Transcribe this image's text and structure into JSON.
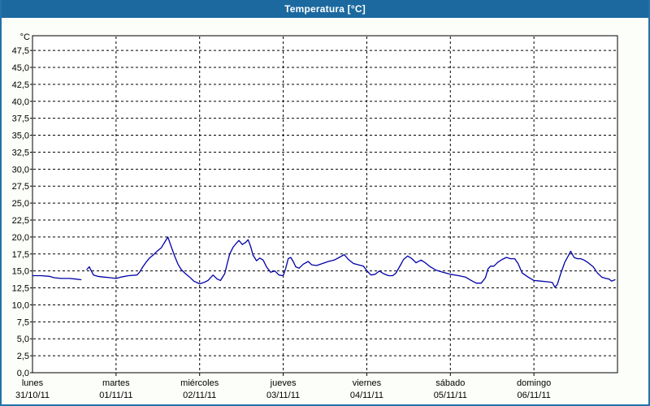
{
  "window": {
    "title": "Temperatura [°C]"
  },
  "colors": {
    "titlebar_bg": "#1b699f",
    "window_border": "#2472aa",
    "chart_bg": "#fcfef9",
    "plot_bg": "#ffffff",
    "grid": "#000000",
    "axis_text": "#000000",
    "title_text": "#ffffff",
    "line": "#0000a8"
  },
  "chart_data": {
    "type": "line",
    "title": "Temperatura [°C]",
    "y_unit_label": "°C",
    "ylim": [
      0,
      47.5
    ],
    "y_step": 2.5,
    "grid": "dashed",
    "legend": "none",
    "y_tick_labels": [
      "47,5",
      "45,0",
      "42,5",
      "40,0",
      "37,5",
      "35,0",
      "32,5",
      "30,0",
      "27,5",
      "25,0",
      "22,5",
      "20,0",
      "17,5",
      "15,0",
      "12,5",
      "10,0",
      "7,5",
      "5,0",
      "2,5",
      "0,0"
    ],
    "x_days": [
      {
        "name": "lunes",
        "date": "31/10/11"
      },
      {
        "name": "martes",
        "date": "01/11/11"
      },
      {
        "name": "miércoles",
        "date": "02/11/11"
      },
      {
        "name": "jueves",
        "date": "03/11/11"
      },
      {
        "name": "viernes",
        "date": "04/11/11"
      },
      {
        "name": "sábado",
        "date": "05/11/11"
      },
      {
        "name": "domingo",
        "date": "06/11/11"
      }
    ],
    "x_unit": "days_from_monday_00h",
    "series": [
      {
        "name": "Temperatura",
        "color": "#0000a8",
        "segments": [
          [
            [
              0.0,
              14.3
            ],
            [
              0.1,
              14.3
            ],
            [
              0.2,
              14.2
            ],
            [
              0.26,
              14.0
            ],
            [
              0.34,
              13.9
            ],
            [
              0.44,
              13.9
            ],
            [
              0.52,
              13.8
            ],
            [
              0.58,
              13.7
            ]
          ],
          [
            [
              0.65,
              15.2
            ],
            [
              0.68,
              15.6
            ],
            [
              0.7,
              15.1
            ],
            [
              0.73,
              14.4
            ],
            [
              0.78,
              14.2
            ],
            [
              0.85,
              14.1
            ],
            [
              0.93,
              14.0
            ],
            [
              1.0,
              13.9
            ],
            [
              1.06,
              14.1
            ],
            [
              1.15,
              14.3
            ],
            [
              1.25,
              14.4
            ],
            [
              1.28,
              14.8
            ],
            [
              1.32,
              15.6
            ],
            [
              1.36,
              16.3
            ],
            [
              1.4,
              16.9
            ],
            [
              1.45,
              17.4
            ],
            [
              1.49,
              17.9
            ],
            [
              1.54,
              18.4
            ],
            [
              1.58,
              19.2
            ],
            [
              1.62,
              20.0
            ],
            [
              1.66,
              18.6
            ],
            [
              1.7,
              17.2
            ],
            [
              1.74,
              16.0
            ],
            [
              1.78,
              15.2
            ],
            [
              1.83,
              14.6
            ],
            [
              1.88,
              14.1
            ],
            [
              1.93,
              13.5
            ],
            [
              2.0,
              13.1
            ],
            [
              2.05,
              13.3
            ],
            [
              2.1,
              13.6
            ],
            [
              2.16,
              14.4
            ],
            [
              2.21,
              13.8
            ],
            [
              2.25,
              13.6
            ],
            [
              2.3,
              14.6
            ],
            [
              2.33,
              16.1
            ],
            [
              2.36,
              17.5
            ],
            [
              2.4,
              18.5
            ],
            [
              2.44,
              19.1
            ],
            [
              2.47,
              19.5
            ],
            [
              2.51,
              18.9
            ],
            [
              2.55,
              19.2
            ],
            [
              2.58,
              19.6
            ],
            [
              2.61,
              18.6
            ],
            [
              2.64,
              17.3
            ],
            [
              2.68,
              16.5
            ],
            [
              2.72,
              16.9
            ],
            [
              2.76,
              16.6
            ],
            [
              2.8,
              15.6
            ],
            [
              2.85,
              14.8
            ],
            [
              2.9,
              15.0
            ],
            [
              2.95,
              14.4
            ],
            [
              3.0,
              14.3
            ],
            [
              3.03,
              15.4
            ],
            [
              3.06,
              16.8
            ],
            [
              3.09,
              17.0
            ],
            [
              3.12,
              16.4
            ],
            [
              3.15,
              15.6
            ],
            [
              3.19,
              15.4
            ],
            [
              3.24,
              16.0
            ],
            [
              3.3,
              16.4
            ],
            [
              3.34,
              15.9
            ],
            [
              3.4,
              15.8
            ],
            [
              3.47,
              16.1
            ],
            [
              3.54,
              16.4
            ],
            [
              3.61,
              16.6
            ],
            [
              3.67,
              17.0
            ],
            [
              3.73,
              17.4
            ],
            [
              3.78,
              16.7
            ],
            [
              3.84,
              16.1
            ],
            [
              3.9,
              15.9
            ],
            [
              3.96,
              15.7
            ],
            [
              4.01,
              14.9
            ],
            [
              4.05,
              14.4
            ],
            [
              4.1,
              14.5
            ],
            [
              4.15,
              15.0
            ],
            [
              4.2,
              14.6
            ],
            [
              4.26,
              14.3
            ],
            [
              4.31,
              14.3
            ],
            [
              4.35,
              14.7
            ],
            [
              4.4,
              15.8
            ],
            [
              4.44,
              16.7
            ],
            [
              4.49,
              17.2
            ],
            [
              4.54,
              16.8
            ],
            [
              4.59,
              16.2
            ],
            [
              4.65,
              16.6
            ],
            [
              4.7,
              16.2
            ],
            [
              4.76,
              15.6
            ],
            [
              4.83,
              15.1
            ],
            [
              4.91,
              14.8
            ],
            [
              5.0,
              14.5
            ],
            [
              5.1,
              14.3
            ],
            [
              5.18,
              14.1
            ],
            [
              5.25,
              13.6
            ],
            [
              5.31,
              13.2
            ],
            [
              5.37,
              13.2
            ],
            [
              5.42,
              14.0
            ],
            [
              5.45,
              15.3
            ],
            [
              5.48,
              15.7
            ],
            [
              5.52,
              15.7
            ],
            [
              5.57,
              16.3
            ],
            [
              5.62,
              16.7
            ],
            [
              5.67,
              17.0
            ],
            [
              5.72,
              16.8
            ],
            [
              5.77,
              16.8
            ],
            [
              5.81,
              16.1
            ],
            [
              5.86,
              14.7
            ],
            [
              5.93,
              14.1
            ],
            [
              6.0,
              13.6
            ],
            [
              6.08,
              13.5
            ],
            [
              6.16,
              13.4
            ],
            [
              6.22,
              13.3
            ],
            [
              6.25,
              12.6
            ],
            [
              6.28,
              13.0
            ],
            [
              6.32,
              14.6
            ],
            [
              6.37,
              16.3
            ],
            [
              6.41,
              17.2
            ],
            [
              6.44,
              17.9
            ],
            [
              6.48,
              17.0
            ],
            [
              6.52,
              16.8
            ],
            [
              6.56,
              16.8
            ],
            [
              6.6,
              16.6
            ],
            [
              6.65,
              16.2
            ],
            [
              6.71,
              15.6
            ],
            [
              6.76,
              14.7
            ],
            [
              6.81,
              14.1
            ],
            [
              6.86,
              13.9
            ],
            [
              6.9,
              13.8
            ],
            [
              6.93,
              13.5
            ],
            [
              6.97,
              13.7
            ]
          ]
        ]
      }
    ]
  }
}
